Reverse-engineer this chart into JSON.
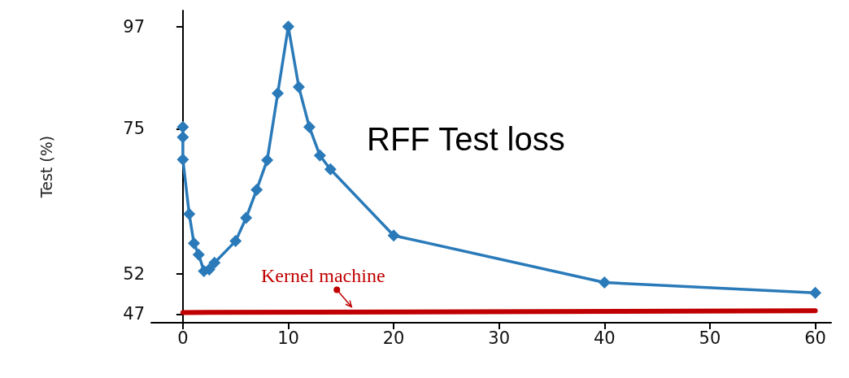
{
  "chart_data": {
    "type": "line",
    "title": "RFF Test loss",
    "ylabel": "Test (%)",
    "log": "y",
    "marker": "diamond",
    "line_style": "solid",
    "xlim": [
      -3,
      61.5
    ],
    "xticks": [
      0,
      10,
      20,
      30,
      40,
      50,
      60
    ],
    "ylim": [
      46,
      101
    ],
    "yticks": [
      47,
      52,
      75,
      97
    ],
    "series": [
      {
        "color": "#2a7ab9",
        "x": [
          0,
          0,
          0,
          0.6,
          1.05,
          1.5,
          2,
          2.5,
          3,
          5,
          6,
          7,
          8,
          9,
          10,
          11,
          12,
          13,
          14,
          20,
          40,
          60
        ],
        "values": [
          75.3,
          73.4,
          69.4,
          60.5,
          56.2,
          54.6,
          52.4,
          52.6,
          53.5,
          56.5,
          59.9,
          64.3,
          69.3,
          82.0,
          97,
          83.3,
          75.3,
          70.1,
          67.7,
          57.3,
          50.9,
          49.6
        ]
      },
      {
        "color": "#c00000",
        "x": [
          0,
          60
        ],
        "values": [
          47.2,
          47.4
        ],
        "marker": "none"
      }
    ],
    "annotations": [
      {
        "text": "Kernel machine",
        "x": 16,
        "y": 47.3
      }
    ]
  }
}
